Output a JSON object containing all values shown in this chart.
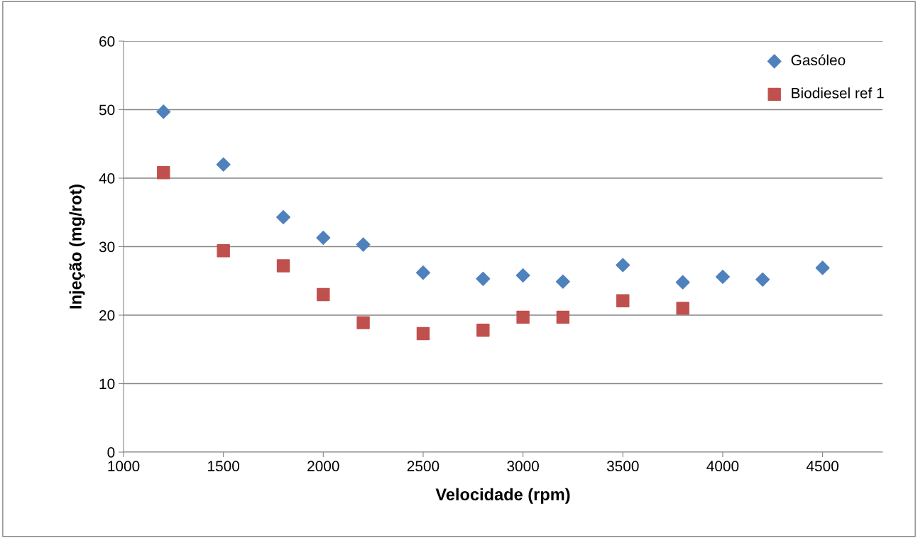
{
  "chart_data": {
    "type": "scatter",
    "xlabel": "Velocidade (rpm)",
    "ylabel": "Injeção (mg/rot)",
    "xlim": [
      1000,
      4800
    ],
    "xticks": [
      1000,
      1500,
      2000,
      2500,
      3000,
      3500,
      4000,
      4500
    ],
    "ylim": [
      0,
      60
    ],
    "yticks": [
      0,
      10,
      20,
      30,
      40,
      50,
      60
    ],
    "grid": "y",
    "legend": "top right",
    "series": [
      {
        "name": "Gasóleo",
        "color": "#4f81bd",
        "marker": "diamond",
        "x": [
          1200,
          1500,
          1800,
          2000,
          2200,
          2500,
          2800,
          3000,
          3200,
          3500,
          3800,
          4000,
          4200,
          4500
        ],
        "values": [
          49.7,
          42.0,
          34.3,
          31.3,
          30.3,
          26.2,
          25.3,
          25.8,
          24.9,
          27.3,
          24.8,
          25.6,
          25.2,
          26.9
        ]
      },
      {
        "name": "Biodiesel ref 1",
        "color": "#c0504d",
        "marker": "square",
        "x": [
          1200,
          1500,
          1800,
          2000,
          2200,
          2500,
          2800,
          3000,
          3200,
          3500,
          3800
        ],
        "values": [
          40.8,
          29.4,
          27.2,
          23.0,
          18.9,
          17.3,
          17.8,
          19.7,
          19.7,
          22.1,
          21.0
        ]
      }
    ]
  }
}
